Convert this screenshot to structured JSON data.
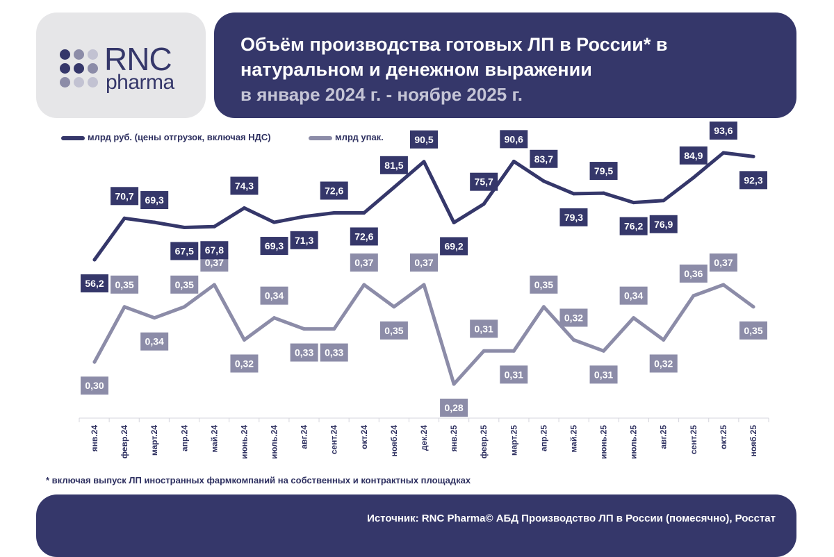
{
  "logo": {
    "brand": "RNC",
    "sub": "pharma",
    "dot_colors": [
      "#35376a",
      "#8c8ca8",
      "#c2c2d2"
    ]
  },
  "header": {
    "title_line1": "Объём производства готовых ЛП в России* в",
    "title_line2": "натуральном и денежном выражении",
    "subtitle": "в январе 2024 г. - ноябре 2025 г."
  },
  "legend": {
    "series1": "млрд руб. (цены отгрузок, включая НДС)",
    "series2": "млрд упак."
  },
  "colors": {
    "dark": "#35376a",
    "light": "#8c8ca8",
    "background": "#ffffff",
    "logo_bg": "#e6e6e8"
  },
  "chart_data": {
    "type": "line",
    "categories": [
      "янв.24",
      "февр.24",
      "март.24",
      "апр.24",
      "май.24",
      "июнь.24",
      "июль.24",
      "авг.24",
      "сент.24",
      "окт.24",
      "нояб.24",
      "дек.24",
      "янв.25",
      "февр.25",
      "март.25",
      "апр.25",
      "май.25",
      "июнь.25",
      "июль.25",
      "авг.25",
      "сент.25",
      "окт.25",
      "нояб.25"
    ],
    "series": [
      {
        "name": "млрд руб. (цены отгрузок, включая НДС)",
        "color": "#35376a",
        "values": [
          56.2,
          70.7,
          69.3,
          67.5,
          67.8,
          74.3,
          69.3,
          71.3,
          72.6,
          72.6,
          81.5,
          90.5,
          69.2,
          75.7,
          90.6,
          83.7,
          79.3,
          79.5,
          76.2,
          76.9,
          84.9,
          93.6,
          92.3
        ],
        "labels": [
          "56,2",
          "70,7",
          "69,3",
          "67,5",
          "67,8",
          "74,3",
          "69,3",
          "71,3",
          "72,6",
          "72,6",
          "81,5",
          "90,5",
          "69,2",
          "75,7",
          "90,6",
          "83,7",
          "79,3",
          "79,5",
          "76,2",
          "76,9",
          "84,9",
          "93,6",
          "92,3"
        ],
        "label_pos": [
          "below",
          "above",
          "above",
          "below",
          "below",
          "above",
          "below",
          "below",
          "above",
          "below",
          "above",
          "above",
          "below",
          "above",
          "above",
          "above",
          "below",
          "above",
          "below",
          "below",
          "above",
          "above",
          "below"
        ]
      },
      {
        "name": "млрд упак.",
        "color": "#8c8ca8",
        "values": [
          0.3,
          0.35,
          0.34,
          0.35,
          0.37,
          0.32,
          0.34,
          0.33,
          0.33,
          0.37,
          0.35,
          0.37,
          0.28,
          0.31,
          0.31,
          0.35,
          0.32,
          0.31,
          0.34,
          0.32,
          0.36,
          0.37,
          0.35
        ],
        "labels": [
          "0,30",
          "0,35",
          "0,34",
          "0,35",
          "0,37",
          "0,32",
          "0,34",
          "0,33",
          "0,33",
          "0,37",
          "0,35",
          "0,37",
          "0,28",
          "0,31",
          "0,31",
          "0,35",
          "0,32",
          "0,31",
          "0,34",
          "0,32",
          "0,36",
          "0,37",
          "0,35"
        ],
        "label_pos": [
          "below",
          "above",
          "below",
          "above",
          "above",
          "below",
          "above",
          "below",
          "below",
          "above",
          "below",
          "above",
          "below",
          "above",
          "below",
          "above",
          "above",
          "below",
          "above",
          "below",
          "above",
          "above",
          "below"
        ]
      }
    ],
    "grid": false
  },
  "footnote": "* включая выпуск ЛП иностранных фармкомпаний на собственных и контрактных площадках",
  "source": "Источник: RNC Pharma© АБД Производство ЛП в России (помесячно), Росстат"
}
